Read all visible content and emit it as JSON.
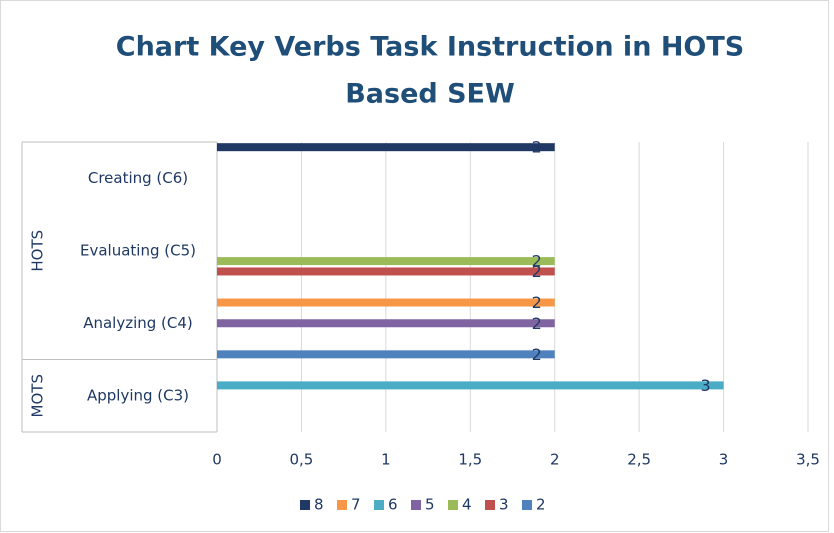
{
  "chart_data": {
    "type": "bar",
    "orientation": "horizontal",
    "title": "Chart Key Verbs Task Instruction in HOTS",
    "subtitle": "Based SEW",
    "categories": [
      "Applying (C3)",
      "Analyzing (C4)",
      "Evaluating (C5)",
      "Creating (C6)"
    ],
    "category_groups": [
      "MOTS",
      "HOTS",
      "HOTS",
      "HOTS"
    ],
    "series": [
      {
        "name": "8",
        "color": "#1f3864",
        "values": [
          null,
          null,
          null,
          2
        ]
      },
      {
        "name": "7",
        "color": "#f79646",
        "values": [
          null,
          2,
          null,
          null
        ]
      },
      {
        "name": "6",
        "color": "#4bacc6",
        "values": [
          3,
          null,
          null,
          null
        ]
      },
      {
        "name": "5",
        "color": "#8064a2",
        "values": [
          null,
          2,
          null,
          null
        ]
      },
      {
        "name": "4",
        "color": "#9bbb59",
        "values": [
          null,
          null,
          2,
          null
        ]
      },
      {
        "name": "3",
        "color": "#c0504d",
        "values": [
          null,
          null,
          2,
          null
        ]
      },
      {
        "name": "2",
        "color": "#4f81bd",
        "values": [
          null,
          2,
          null,
          null
        ]
      }
    ],
    "xlim": [
      0,
      3.5
    ],
    "xticks": [
      0,
      {
        "value": 0.5,
        "label": "0,5"
      },
      1,
      {
        "value": 1.5,
        "label": "1,5"
      },
      2,
      {
        "value": 2.5,
        "label": "2,5"
      },
      3,
      {
        "value": 3.5,
        "label": "3,5"
      }
    ],
    "grid": true,
    "legend": "bottom"
  }
}
